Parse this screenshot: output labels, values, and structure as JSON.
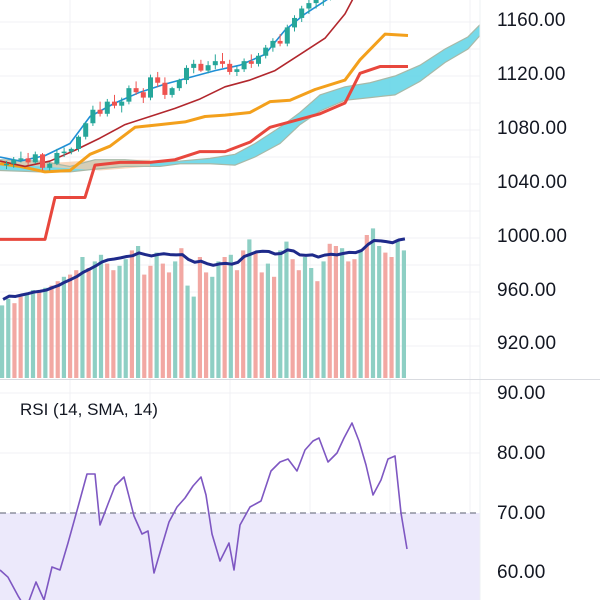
{
  "chart_data": [
    {
      "type": "candlestick",
      "title": "",
      "price_axis": {
        "ticks": [
          1160,
          1120,
          1080,
          1040,
          1000,
          960,
          920
        ],
        "tick_labels": [
          "1160.00",
          "1120.00",
          "1080.00",
          "1040.00",
          "1000.00",
          "960.00",
          "920.00"
        ],
        "ylim": [
          899,
          1180
        ]
      },
      "grid": true,
      "candles_ohlc": [
        [
          1054,
          1057,
          1051,
          1055
        ],
        [
          1055,
          1060,
          1052,
          1058
        ],
        [
          1058,
          1064,
          1056,
          1059
        ],
        [
          1059,
          1063,
          1054,
          1056
        ],
        [
          1056,
          1064,
          1055,
          1062
        ],
        [
          1062,
          1063,
          1050,
          1052
        ],
        [
          1052,
          1056,
          1050,
          1055
        ],
        [
          1055,
          1066,
          1054,
          1063
        ],
        [
          1063,
          1067,
          1060,
          1064
        ],
        [
          1064,
          1067,
          1062,
          1066
        ],
        [
          1066,
          1076,
          1064,
          1075
        ],
        [
          1075,
          1086,
          1073,
          1085
        ],
        [
          1085,
          1098,
          1083,
          1095
        ],
        [
          1095,
          1101,
          1090,
          1092
        ],
        [
          1092,
          1103,
          1090,
          1101
        ],
        [
          1101,
          1106,
          1096,
          1098
        ],
        [
          1098,
          1104,
          1093,
          1101
        ],
        [
          1101,
          1113,
          1099,
          1111
        ],
        [
          1111,
          1116,
          1106,
          1108
        ],
        [
          1108,
          1111,
          1100,
          1104
        ],
        [
          1104,
          1121,
          1102,
          1119
        ],
        [
          1119,
          1123,
          1112,
          1115
        ],
        [
          1115,
          1119,
          1103,
          1106
        ],
        [
          1106,
          1112,
          1104,
          1111
        ],
        [
          1111,
          1118,
          1109,
          1117
        ],
        [
          1117,
          1128,
          1114,
          1126
        ],
        [
          1126,
          1132,
          1122,
          1129
        ],
        [
          1129,
          1132,
          1123,
          1124
        ],
        [
          1124,
          1131,
          1122,
          1128
        ],
        [
          1128,
          1136,
          1125,
          1131
        ],
        [
          1131,
          1137,
          1126,
          1129
        ],
        [
          1129,
          1132,
          1121,
          1123
        ],
        [
          1123,
          1127,
          1120,
          1125
        ],
        [
          1125,
          1133,
          1123,
          1131
        ],
        [
          1131,
          1136,
          1126,
          1129
        ],
        [
          1129,
          1137,
          1127,
          1135
        ],
        [
          1135,
          1143,
          1133,
          1141
        ],
        [
          1141,
          1148,
          1138,
          1146
        ],
        [
          1146,
          1151,
          1142,
          1144
        ],
        [
          1144,
          1158,
          1142,
          1156
        ],
        [
          1156,
          1165,
          1153,
          1163
        ],
        [
          1163,
          1172,
          1160,
          1170
        ],
        [
          1170,
          1177,
          1166,
          1174
        ],
        [
          1174,
          1180,
          1170,
          1177
        ],
        [
          1177,
          1182,
          1172,
          1179
        ],
        [
          1179,
          1184,
          1176,
          1182
        ]
      ],
      "lines": {
        "fast_line": [
          [
            0,
            1060
          ],
          [
            20,
            1057
          ],
          [
            45,
            1061
          ],
          [
            70,
            1070
          ],
          [
            90,
            1090
          ],
          [
            115,
            1100
          ],
          [
            140,
            1108
          ],
          [
            165,
            1114
          ],
          [
            190,
            1119
          ],
          [
            215,
            1124
          ],
          [
            240,
            1128
          ],
          [
            265,
            1136
          ],
          [
            285,
            1154
          ],
          [
            305,
            1166
          ],
          [
            330,
            1178
          ]
        ],
        "slow_line": [
          [
            0,
            1057
          ],
          [
            25,
            1053
          ],
          [
            50,
            1057
          ],
          [
            75,
            1065
          ],
          [
            100,
            1074
          ],
          [
            125,
            1084
          ],
          [
            150,
            1090
          ],
          [
            175,
            1096
          ],
          [
            200,
            1103
          ],
          [
            225,
            1112
          ],
          [
            250,
            1117
          ],
          [
            275,
            1124
          ],
          [
            300,
            1136
          ],
          [
            325,
            1148
          ],
          [
            345,
            1166
          ],
          [
            355,
            1180
          ]
        ],
        "orange_line": [
          [
            0,
            1055
          ],
          [
            20,
            1053
          ],
          [
            45,
            1049
          ],
          [
            70,
            1050
          ],
          [
            90,
            1062
          ],
          [
            110,
            1068
          ],
          [
            135,
            1082
          ],
          [
            160,
            1084
          ],
          [
            185,
            1086
          ],
          [
            205,
            1090
          ],
          [
            225,
            1091
          ],
          [
            250,
            1093
          ],
          [
            270,
            1101
          ],
          [
            290,
            1102
          ],
          [
            315,
            1110
          ],
          [
            345,
            1117
          ],
          [
            360,
            1132
          ],
          [
            385,
            1151
          ],
          [
            408,
            1150
          ]
        ],
        "red_line": [
          [
            0,
            999
          ],
          [
            45,
            999
          ],
          [
            55,
            1030
          ],
          [
            85,
            1030
          ],
          [
            95,
            1054
          ],
          [
            120,
            1056
          ],
          [
            150,
            1056
          ],
          [
            175,
            1058
          ],
          [
            200,
            1064
          ],
          [
            225,
            1064
          ],
          [
            250,
            1071
          ],
          [
            270,
            1082
          ],
          [
            295,
            1087
          ],
          [
            320,
            1092
          ],
          [
            345,
            1100
          ],
          [
            360,
            1122
          ],
          [
            380,
            1127
          ],
          [
            408,
            1127
          ]
        ]
      },
      "cloud": {
        "color": "#5ed3e6",
        "upper": [
          [
            0,
            1058
          ],
          [
            40,
            1057
          ],
          [
            70,
            1053
          ],
          [
            95,
            1058
          ],
          [
            125,
            1058
          ],
          [
            160,
            1056
          ],
          [
            180,
            1057
          ],
          [
            210,
            1059
          ],
          [
            235,
            1062
          ],
          [
            255,
            1070
          ],
          [
            280,
            1082
          ],
          [
            300,
            1093
          ],
          [
            320,
            1106
          ],
          [
            345,
            1112
          ],
          [
            370,
            1115
          ],
          [
            395,
            1120
          ],
          [
            420,
            1128
          ],
          [
            445,
            1140
          ],
          [
            468,
            1149
          ],
          [
            480,
            1158
          ]
        ],
        "lower": [
          [
            0,
            1050
          ],
          [
            40,
            1049
          ],
          [
            70,
            1049
          ],
          [
            95,
            1051
          ],
          [
            125,
            1053
          ],
          [
            160,
            1053
          ],
          [
            180,
            1055
          ],
          [
            210,
            1055
          ],
          [
            235,
            1054
          ],
          [
            255,
            1060
          ],
          [
            280,
            1070
          ],
          [
            300,
            1084
          ],
          [
            320,
            1094
          ],
          [
            345,
            1102
          ],
          [
            370,
            1104
          ],
          [
            395,
            1106
          ],
          [
            420,
            1116
          ],
          [
            445,
            1130
          ],
          [
            468,
            1140
          ],
          [
            480,
            1150
          ]
        ]
      },
      "volume": {
        "values": [
          33,
          36,
          34,
          37,
          38,
          40,
          39,
          41,
          42,
          44,
          46,
          47,
          49,
          55,
          50,
          53,
          56,
          52,
          49,
          51,
          54,
          58,
          60,
          47,
          51,
          57,
          52,
          48,
          53,
          59,
          42,
          37,
          55,
          48,
          46,
          53,
          55,
          56,
          49,
          58,
          63,
          57,
          48,
          52,
          46,
          58,
          62,
          54,
          49,
          55,
          50,
          44,
          53,
          61,
          60,
          59,
          53,
          54,
          58,
          65,
          68,
          60,
          57,
          55,
          63,
          58
        ],
        "up_color": "#8ecfc4",
        "down_color": "#f2a8a3",
        "ma_color": "#1e2a8a"
      }
    },
    {
      "type": "line",
      "title": "RSI (14, SMA, 14)",
      "y_axis": {
        "ticks": [
          90,
          80,
          70,
          60
        ],
        "tick_labels": [
          "90.00",
          "80.00",
          "70.00",
          "60.00"
        ],
        "ylim": [
          55,
          93
        ]
      },
      "overbought_level": 70,
      "band_color": "#ece9fb",
      "line_color": "#7e57c2",
      "x": [
        0,
        8,
        18,
        26,
        36,
        44,
        52,
        60,
        68,
        78,
        87,
        95,
        100,
        108,
        115,
        124,
        134,
        142,
        148,
        154,
        161,
        169,
        177,
        185,
        193,
        201,
        206,
        212,
        220,
        229,
        234,
        240,
        250,
        261,
        271,
        280,
        288,
        297,
        305,
        313,
        319,
        328,
        337,
        344,
        352,
        359,
        366,
        373,
        381,
        388,
        395,
        401,
        407
      ],
      "y": [
        60.5,
        59.3,
        56.2,
        54.0,
        58.5,
        55.5,
        61.0,
        60.5,
        65.0,
        71.0,
        76.5,
        76.5,
        68.0,
        71.5,
        74.5,
        76.0,
        69.5,
        66.5,
        67.0,
        60.0,
        64.0,
        68.5,
        71.0,
        72.5,
        74.5,
        76.0,
        73.0,
        66.5,
        62.0,
        65.0,
        60.5,
        68.0,
        71.0,
        72.0,
        77.0,
        78.5,
        79.0,
        77.0,
        80.5,
        82.0,
        82.5,
        78.5,
        80.0,
        82.5,
        85.0,
        82.0,
        78.0,
        73.0,
        75.5,
        79.0,
        79.5,
        70.0,
        64.0
      ]
    }
  ]
}
